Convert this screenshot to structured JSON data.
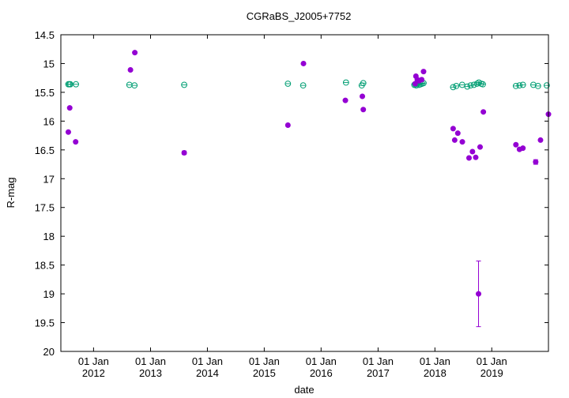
{
  "chart_data": {
    "type": "scatter",
    "title": "CGRaBS_J2005+7752",
    "xlabel": "date",
    "ylabel": "R-mag",
    "x_type": "date",
    "xlim": [
      "2011-06-05",
      "2019-12-31"
    ],
    "ylim": [
      14.5,
      20
    ],
    "y_inverted": true,
    "grid": false,
    "legend": "none",
    "x_ticks": [
      {
        "date": "2012-01-01",
        "line1": "01 Jan",
        "line2": "2012"
      },
      {
        "date": "2013-01-01",
        "line1": "01 Jan",
        "line2": "2013"
      },
      {
        "date": "2014-01-01",
        "line1": "01 Jan",
        "line2": "2014"
      },
      {
        "date": "2015-01-01",
        "line1": "01 Jan",
        "line2": "2015"
      },
      {
        "date": "2016-01-01",
        "line1": "01 Jan",
        "line2": "2016"
      },
      {
        "date": "2017-01-01",
        "line1": "01 Jan",
        "line2": "2017"
      },
      {
        "date": "2018-01-01",
        "line1": "01 Jan",
        "line2": "2018"
      },
      {
        "date": "2019-01-01",
        "line1": "01 Jan",
        "line2": "2019"
      }
    ],
    "y_ticks": [
      "14.5",
      "15",
      "15.5",
      "16",
      "16.5",
      "17",
      "17.5",
      "18",
      "18.5",
      "19",
      "19.5",
      "20"
    ],
    "series": [
      {
        "marker": "open-circle-cross",
        "color": "#009e73",
        "points": [
          {
            "x": "2011-07-23",
            "y": 15.36
          },
          {
            "x": "2011-07-30",
            "y": 15.36
          },
          {
            "x": "2011-08-05",
            "y": 15.36
          },
          {
            "x": "2011-09-10",
            "y": 15.36
          },
          {
            "x": "2012-08-18",
            "y": 15.37
          },
          {
            "x": "2012-09-20",
            "y": 15.38
          },
          {
            "x": "2013-08-05",
            "y": 15.37
          },
          {
            "x": "2015-06-02",
            "y": 15.35
          },
          {
            "x": "2015-09-08",
            "y": 15.38
          },
          {
            "x": "2016-06-09",
            "y": 15.33
          },
          {
            "x": "2016-09-18",
            "y": 15.38
          },
          {
            "x": "2016-09-28",
            "y": 15.34
          },
          {
            "x": "2017-08-22",
            "y": 15.37
          },
          {
            "x": "2017-08-28",
            "y": 15.36
          },
          {
            "x": "2017-09-03",
            "y": 15.38
          },
          {
            "x": "2017-09-10",
            "y": 15.35
          },
          {
            "x": "2017-09-20",
            "y": 15.37
          },
          {
            "x": "2017-09-30",
            "y": 15.36
          },
          {
            "x": "2017-10-10",
            "y": 15.35
          },
          {
            "x": "2017-10-20",
            "y": 15.34
          },
          {
            "x": "2018-04-28",
            "y": 15.41
          },
          {
            "x": "2018-05-18",
            "y": 15.39
          },
          {
            "x": "2018-06-25",
            "y": 15.37
          },
          {
            "x": "2018-07-28",
            "y": 15.4
          },
          {
            "x": "2018-08-18",
            "y": 15.38
          },
          {
            "x": "2018-09-08",
            "y": 15.37
          },
          {
            "x": "2018-09-28",
            "y": 15.35
          },
          {
            "x": "2018-10-10",
            "y": 15.33
          },
          {
            "x": "2018-10-25",
            "y": 15.35
          },
          {
            "x": "2018-11-05",
            "y": 15.36
          },
          {
            "x": "2019-06-05",
            "y": 15.39
          },
          {
            "x": "2019-06-28",
            "y": 15.38
          },
          {
            "x": "2019-07-20",
            "y": 15.37
          },
          {
            "x": "2019-09-25",
            "y": 15.37
          },
          {
            "x": "2019-10-25",
            "y": 15.39
          },
          {
            "x": "2019-12-20",
            "y": 15.38
          }
        ]
      },
      {
        "marker": "filled-circle",
        "color": "#9400d3",
        "points": [
          {
            "x": "2011-07-23",
            "y": 16.19
          },
          {
            "x": "2011-08-01",
            "y": 15.77
          },
          {
            "x": "2011-09-08",
            "y": 16.36
          },
          {
            "x": "2012-08-25",
            "y": 15.11
          },
          {
            "x": "2012-09-22",
            "y": 14.81
          },
          {
            "x": "2013-08-05",
            "y": 16.55,
            "err": 0.03
          },
          {
            "x": "2015-06-02",
            "y": 16.07
          },
          {
            "x": "2015-09-10",
            "y": 15.0
          },
          {
            "x": "2016-06-05",
            "y": 15.64
          },
          {
            "x": "2016-09-22",
            "y": 15.57
          },
          {
            "x": "2016-09-28",
            "y": 15.8
          },
          {
            "x": "2017-08-27",
            "y": 15.35
          },
          {
            "x": "2017-09-01",
            "y": 15.22
          },
          {
            "x": "2017-09-10",
            "y": 15.28
          },
          {
            "x": "2017-09-22",
            "y": 15.3
          },
          {
            "x": "2017-10-08",
            "y": 15.28
          },
          {
            "x": "2017-10-20",
            "y": 15.14
          },
          {
            "x": "2018-04-28",
            "y": 16.13
          },
          {
            "x": "2018-05-08",
            "y": 16.33
          },
          {
            "x": "2018-05-28",
            "y": 16.21
          },
          {
            "x": "2018-06-26",
            "y": 16.36
          },
          {
            "x": "2018-08-08",
            "y": 16.64
          },
          {
            "x": "2018-08-30",
            "y": 16.53
          },
          {
            "x": "2018-09-20",
            "y": 16.63
          },
          {
            "x": "2018-10-08",
            "y": 19.0,
            "err": 0.57
          },
          {
            "x": "2018-10-18",
            "y": 16.45
          },
          {
            "x": "2018-11-08",
            "y": 15.84
          },
          {
            "x": "2019-06-05",
            "y": 16.41
          },
          {
            "x": "2019-06-28",
            "y": 16.49
          },
          {
            "x": "2019-07-20",
            "y": 16.47
          },
          {
            "x": "2019-10-10",
            "y": 16.71,
            "err": 0.04
          },
          {
            "x": "2019-11-10",
            "y": 16.33
          },
          {
            "x": "2019-12-31",
            "y": 15.88
          }
        ]
      }
    ]
  }
}
